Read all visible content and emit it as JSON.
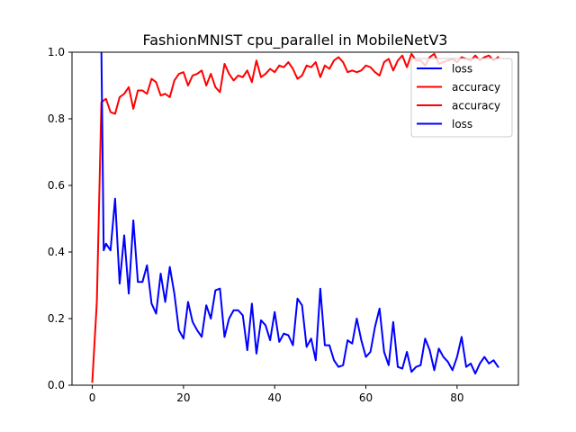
{
  "chart_data": {
    "type": "line",
    "title": "FashionMNIST cpu_parallel in MobileNetV3",
    "xlabel": "",
    "ylabel": "",
    "xlim": [
      -4.45,
      93.45
    ],
    "ylim": [
      0,
      1.0
    ],
    "grid": false,
    "legend_position": "upper right",
    "x_ticks": [
      0,
      20,
      40,
      60,
      80
    ],
    "x_tick_labels": [
      "0",
      "20",
      "40",
      "60",
      "80"
    ],
    "y_ticks": [
      0.0,
      0.2,
      0.4,
      0.6,
      0.8,
      1.0
    ],
    "y_tick_labels": [
      "0.0",
      "0.2",
      "0.4",
      "0.6",
      "0.8",
      "1.0"
    ],
    "legend": [
      {
        "label": "loss",
        "color": "#0000ff"
      },
      {
        "label": "accuracy",
        "color": "#ff0000"
      },
      {
        "label": "accuracy",
        "color": "#ff0000"
      },
      {
        "label": "loss",
        "color": "#0000ff"
      }
    ],
    "series": [
      {
        "name": "accuracy",
        "color": "#ff0000",
        "x": [
          0,
          1,
          2,
          3,
          4,
          5,
          6,
          7,
          8,
          9,
          10,
          11,
          12,
          13,
          14,
          15,
          16,
          17,
          18,
          19,
          20,
          21,
          22,
          23,
          24,
          25,
          26,
          27,
          28,
          29,
          30,
          31,
          32,
          33,
          34,
          35,
          36,
          37,
          38,
          39,
          40,
          41,
          42,
          43,
          44,
          45,
          46,
          47,
          48,
          49,
          50,
          51,
          52,
          53,
          54,
          55,
          56,
          57,
          58,
          59,
          60,
          61,
          62,
          63,
          64,
          65,
          66,
          67,
          68,
          69,
          70,
          71,
          72,
          73,
          74,
          75,
          76,
          77,
          78,
          79,
          80,
          81,
          82,
          83,
          84,
          85,
          86,
          87,
          88,
          89
        ],
        "values": [
          0.01,
          0.25,
          0.85,
          0.86,
          0.82,
          0.815,
          0.865,
          0.875,
          0.895,
          0.83,
          0.885,
          0.885,
          0.875,
          0.92,
          0.91,
          0.87,
          0.875,
          0.865,
          0.915,
          0.935,
          0.94,
          0.9,
          0.93,
          0.935,
          0.945,
          0.9,
          0.935,
          0.895,
          0.88,
          0.965,
          0.935,
          0.915,
          0.93,
          0.925,
          0.945,
          0.91,
          0.975,
          0.925,
          0.935,
          0.95,
          0.94,
          0.96,
          0.955,
          0.97,
          0.95,
          0.92,
          0.93,
          0.96,
          0.955,
          0.97,
          0.925,
          0.96,
          0.95,
          0.975,
          0.985,
          0.97,
          0.94,
          0.945,
          0.94,
          0.945,
          0.96,
          0.955,
          0.94,
          0.93,
          0.97,
          0.98,
          0.945,
          0.975,
          0.99,
          0.955,
          0.995,
          0.975,
          0.975,
          0.96,
          0.985,
          0.995,
          0.965,
          0.97,
          0.975,
          0.98,
          0.97,
          0.985,
          0.98,
          0.975,
          0.99,
          0.975,
          0.985,
          0.99,
          0.975,
          0.985
        ]
      },
      {
        "name": "loss",
        "color": "#0000ff",
        "x": [
          2,
          2.5,
          3,
          4,
          5,
          6,
          7,
          8,
          9,
          10,
          11,
          12,
          13,
          14,
          15,
          16,
          17,
          18,
          19,
          20,
          21,
          22,
          23,
          24,
          25,
          26,
          27,
          28,
          29,
          30,
          31,
          32,
          33,
          34,
          35,
          36,
          37,
          38,
          39,
          40,
          41,
          42,
          43,
          44,
          45,
          46,
          47,
          48,
          49,
          50,
          51,
          52,
          53,
          54,
          55,
          56,
          57,
          58,
          59,
          60,
          61,
          62,
          63,
          64,
          65,
          66,
          67,
          68,
          69,
          70,
          71,
          72,
          73,
          74,
          75,
          76,
          77,
          78,
          79,
          80,
          81,
          82,
          83,
          84,
          85,
          86,
          87,
          88,
          89
        ],
        "values": [
          1.0,
          0.405,
          0.425,
          0.405,
          0.56,
          0.305,
          0.45,
          0.275,
          0.495,
          0.31,
          0.31,
          0.36,
          0.245,
          0.215,
          0.335,
          0.25,
          0.355,
          0.275,
          0.165,
          0.14,
          0.25,
          0.19,
          0.165,
          0.145,
          0.24,
          0.2,
          0.285,
          0.29,
          0.145,
          0.2,
          0.225,
          0.225,
          0.21,
          0.105,
          0.245,
          0.095,
          0.195,
          0.18,
          0.135,
          0.22,
          0.13,
          0.155,
          0.15,
          0.12,
          0.26,
          0.24,
          0.115,
          0.14,
          0.075,
          0.29,
          0.12,
          0.12,
          0.075,
          0.055,
          0.06,
          0.135,
          0.125,
          0.2,
          0.135,
          0.085,
          0.1,
          0.175,
          0.23,
          0.1,
          0.06,
          0.19,
          0.055,
          0.05,
          0.1,
          0.04,
          0.055,
          0.06,
          0.14,
          0.105,
          0.045,
          0.11,
          0.085,
          0.07,
          0.045,
          0.085,
          0.145,
          0.055,
          0.065,
          0.035,
          0.065,
          0.085,
          0.065,
          0.075,
          0.055
        ]
      }
    ]
  }
}
